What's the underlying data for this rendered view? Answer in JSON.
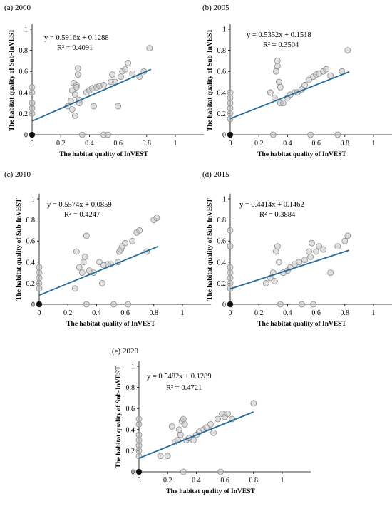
{
  "colors": {
    "point_fill": "#c7c7c7",
    "point_stroke": "#8a8a8a",
    "trendline": "#1f6b9a",
    "axis": "#000000"
  },
  "chart_data": [
    {
      "panel": "(a) 2000",
      "type": "scatter",
      "xlabel": "The habitat quality of InVEST",
      "ylabel": "The habitat quality of Sub-InVEST",
      "xlim": [
        0,
        1.2
      ],
      "ylim": [
        0,
        1.05
      ],
      "xticks": [
        "0",
        "0.2",
        "0.4",
        "0.6",
        "0.8",
        "1"
      ],
      "yticks": [
        "0",
        "0.2",
        "0.4",
        "0.6",
        "0.8",
        "1"
      ],
      "equation": "y = 0.5916x + 0.1288",
      "r2": "R² = 0.4091",
      "trendline": {
        "slope": 0.5916,
        "intercept": 0.1288,
        "x_range": [
          0,
          0.83
        ]
      },
      "points": [
        [
          0,
          0
        ],
        [
          0,
          0.2
        ],
        [
          0,
          0.3
        ],
        [
          0,
          0.4
        ],
        [
          0,
          0.45
        ],
        [
          0,
          0.25
        ],
        [
          0.25,
          0.27
        ],
        [
          0.27,
          0.32
        ],
        [
          0.28,
          0.42
        ],
        [
          0.28,
          0.24
        ],
        [
          0.29,
          0.49
        ],
        [
          0.3,
          0.38
        ],
        [
          0.3,
          0.18
        ],
        [
          0.31,
          0.47
        ],
        [
          0.31,
          0.45
        ],
        [
          0.32,
          0.63
        ],
        [
          0.32,
          0.57
        ],
        [
          0.33,
          0.33
        ],
        [
          0.33,
          0.3
        ],
        [
          0.35,
          0
        ],
        [
          0.38,
          0.4
        ],
        [
          0.4,
          0.42
        ],
        [
          0.42,
          0.44
        ],
        [
          0.43,
          0.27
        ],
        [
          0.45,
          0.45
        ],
        [
          0.47,
          0.46
        ],
        [
          0.5,
          0.47
        ],
        [
          0.5,
          0
        ],
        [
          0.53,
          0
        ],
        [
          0.55,
          0.5
        ],
        [
          0.56,
          0.57
        ],
        [
          0.58,
          0.5
        ],
        [
          0.6,
          0.27
        ],
        [
          0.62,
          0.55
        ],
        [
          0.63,
          0.6
        ],
        [
          0.65,
          0.62
        ],
        [
          0.67,
          0.68
        ],
        [
          0.7,
          0.58
        ],
        [
          0.75,
          0.55
        ],
        [
          0.78,
          0.6
        ],
        [
          0.82,
          0.82
        ]
      ]
    },
    {
      "panel": "(b) 2005",
      "type": "scatter",
      "xlabel": "The habitat quality of InVEST",
      "ylabel": "The habitat quality of Sub-InVEST",
      "xlim": [
        0,
        1.2
      ],
      "ylim": [
        0,
        1.05
      ],
      "xticks": [
        "0",
        "0.2",
        "0.4",
        "0.6",
        "0.8",
        "1"
      ],
      "yticks": [
        "0",
        "0.2",
        "0.4",
        "0.6",
        "0.8",
        "1"
      ],
      "equation": "y = 0.5352x + 0.1518",
      "r2": "R² = 0.3504",
      "trendline": {
        "slope": 0.5352,
        "intercept": 0.1518,
        "x_range": [
          0,
          0.83
        ]
      },
      "points": [
        [
          0,
          0
        ],
        [
          0,
          0.2
        ],
        [
          0,
          0.25
        ],
        [
          0,
          0.3
        ],
        [
          0,
          0.35
        ],
        [
          0,
          0.4
        ],
        [
          0,
          0.15
        ],
        [
          0.28,
          0.4
        ],
        [
          0.3,
          0
        ],
        [
          0.31,
          0.35
        ],
        [
          0.32,
          0.6
        ],
        [
          0.33,
          0.65
        ],
        [
          0.33,
          0.7
        ],
        [
          0.34,
          0.5
        ],
        [
          0.35,
          0.45
        ],
        [
          0.35,
          0.3
        ],
        [
          0.37,
          0.3
        ],
        [
          0.4,
          0.35
        ],
        [
          0.42,
          0.38
        ],
        [
          0.45,
          0.4
        ],
        [
          0.47,
          0.4
        ],
        [
          0.5,
          0.43
        ],
        [
          0.52,
          0.47
        ],
        [
          0.55,
          0.52
        ],
        [
          0.56,
          0
        ],
        [
          0.58,
          0.55
        ],
        [
          0.6,
          0.57
        ],
        [
          0.62,
          0.58
        ],
        [
          0.65,
          0.6
        ],
        [
          0.67,
          0.62
        ],
        [
          0.7,
          0.56
        ],
        [
          0.75,
          0
        ],
        [
          0.78,
          0.6
        ],
        [
          0.82,
          0.8
        ]
      ]
    },
    {
      "panel": "(c) 2010",
      "type": "scatter",
      "xlabel": "The habitat quality of InVEST",
      "ylabel": "The habitat quality of Sub-InVEST",
      "xlim": [
        0,
        1.2
      ],
      "ylim": [
        0,
        1.05
      ],
      "xticks": [
        "0",
        "0.2",
        "0.4",
        "0.6",
        "0.8",
        "1"
      ],
      "yticks": [
        "0",
        "0.2",
        "0.4",
        "0.6",
        "0.8",
        "1"
      ],
      "equation": "y = 0.5574x + 0.0859",
      "r2": "R² = 0.4247",
      "trendline": {
        "slope": 0.5574,
        "intercept": 0.0859,
        "x_range": [
          0,
          0.83
        ]
      },
      "points": [
        [
          0,
          0
        ],
        [
          0,
          0.2
        ],
        [
          0,
          0.25
        ],
        [
          0,
          0.3
        ],
        [
          0,
          0.35
        ],
        [
          0,
          0.15
        ],
        [
          0.25,
          0.15
        ],
        [
          0.26,
          0.5
        ],
        [
          0.28,
          0.35
        ],
        [
          0.3,
          0.3
        ],
        [
          0.31,
          0.4
        ],
        [
          0.32,
          0.45
        ],
        [
          0.33,
          0.65
        ],
        [
          0.33,
          0
        ],
        [
          0.35,
          0.32
        ],
        [
          0.38,
          0.3
        ],
        [
          0.42,
          0.4
        ],
        [
          0.44,
          0.2
        ],
        [
          0.45,
          0.37
        ],
        [
          0.48,
          0.38
        ],
        [
          0.5,
          0.38
        ],
        [
          0.52,
          0
        ],
        [
          0.55,
          0.4
        ],
        [
          0.56,
          0.5
        ],
        [
          0.57,
          0.52
        ],
        [
          0.58,
          0.55
        ],
        [
          0.6,
          0.58
        ],
        [
          0.62,
          0
        ],
        [
          0.65,
          0.6
        ],
        [
          0.68,
          0.68
        ],
        [
          0.7,
          0.7
        ],
        [
          0.75,
          0.5
        ],
        [
          0.8,
          0.8
        ],
        [
          0.82,
          0.82
        ]
      ]
    },
    {
      "panel": "(d) 2015",
      "type": "scatter",
      "xlabel": "The habitat quality of InVEST",
      "ylabel": "The habitat quality of Sub-InVEST",
      "xlim": [
        0,
        1.2
      ],
      "ylim": [
        0,
        1.05
      ],
      "xticks": [
        "0",
        "0.2",
        "0.4",
        "0.6",
        "0.8",
        "1"
      ],
      "yticks": [
        "0",
        "0.2",
        "0.4",
        "0.6",
        "0.8",
        "1"
      ],
      "equation": "y = 0.4414x + 0.1462",
      "r2": "R² = 0.3884",
      "trendline": {
        "slope": 0.4414,
        "intercept": 0.1462,
        "x_range": [
          0,
          0.83
        ]
      },
      "points": [
        [
          0,
          0
        ],
        [
          0,
          0.15
        ],
        [
          0,
          0.2
        ],
        [
          0,
          0.25
        ],
        [
          0,
          0.3
        ],
        [
          0,
          0.35
        ],
        [
          0,
          0.55
        ],
        [
          0,
          0.7
        ],
        [
          0.25,
          0.2
        ],
        [
          0.28,
          0.25
        ],
        [
          0.3,
          0.3
        ],
        [
          0.31,
          0.22
        ],
        [
          0.32,
          0.5
        ],
        [
          0.33,
          0.55
        ],
        [
          0.34,
          0.4
        ],
        [
          0.35,
          0
        ],
        [
          0.37,
          0.3
        ],
        [
          0.4,
          0.32
        ],
        [
          0.42,
          0.35
        ],
        [
          0.45,
          0.38
        ],
        [
          0.48,
          0.4
        ],
        [
          0.5,
          0
        ],
        [
          0.52,
          0.42
        ],
        [
          0.55,
          0.5
        ],
        [
          0.56,
          0.45
        ],
        [
          0.57,
          0.58
        ],
        [
          0.58,
          0
        ],
        [
          0.6,
          0.5
        ],
        [
          0.62,
          0.55
        ],
        [
          0.65,
          0.52
        ],
        [
          0.7,
          0.3
        ],
        [
          0.75,
          0.55
        ],
        [
          0.8,
          0.6
        ],
        [
          0.82,
          0.65
        ]
      ]
    },
    {
      "panel": "(e) 2020",
      "type": "scatter",
      "xlabel": "The habitat quality of InVEST",
      "ylabel": "The habitat quality of Sub-InVEST",
      "xlim": [
        0,
        1.2
      ],
      "ylim": [
        0,
        1.05
      ],
      "xticks": [
        "0",
        "0.2",
        "0.4",
        "0.6",
        "0.8",
        "1"
      ],
      "yticks": [
        "0",
        "0.2",
        "0.4",
        "0.6",
        "0.8",
        "1"
      ],
      "equation": "y = 0.5482x + 0.1289",
      "r2": "R² = 0.4721",
      "trendline": {
        "slope": 0.5482,
        "intercept": 0.1289,
        "x_range": [
          0,
          0.8
        ]
      },
      "points": [
        [
          0,
          0
        ],
        [
          0,
          0.15
        ],
        [
          0,
          0.2
        ],
        [
          0,
          0.25
        ],
        [
          0,
          0.3
        ],
        [
          0,
          0.35
        ],
        [
          0,
          0.45
        ],
        [
          0,
          0.5
        ],
        [
          0.15,
          0.15
        ],
        [
          0.2,
          0.15
        ],
        [
          0.23,
          0.43
        ],
        [
          0.25,
          0.28
        ],
        [
          0.27,
          0.3
        ],
        [
          0.28,
          0.4
        ],
        [
          0.29,
          0.35
        ],
        [
          0.3,
          0.48
        ],
        [
          0.31,
          0.5
        ],
        [
          0.31,
          0
        ],
        [
          0.32,
          0.45
        ],
        [
          0.33,
          0.3
        ],
        [
          0.35,
          0.32
        ],
        [
          0.38,
          0.3
        ],
        [
          0.4,
          0.35
        ],
        [
          0.42,
          0.38
        ],
        [
          0.45,
          0.4
        ],
        [
          0.47,
          0.42
        ],
        [
          0.5,
          0.45
        ],
        [
          0.52,
          0.37
        ],
        [
          0.55,
          0.5
        ],
        [
          0.57,
          0
        ],
        [
          0.58,
          0.55
        ],
        [
          0.6,
          0.52
        ],
        [
          0.62,
          0.55
        ],
        [
          0.65,
          0.5
        ],
        [
          0.8,
          0.65
        ]
      ]
    }
  ]
}
